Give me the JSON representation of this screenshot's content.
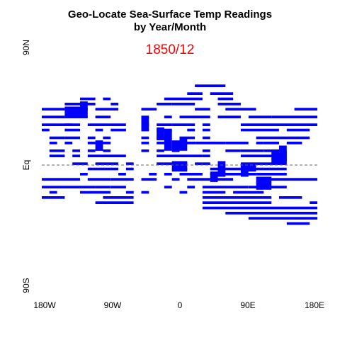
{
  "chart_data": {
    "type": "heatmap",
    "title": "Geo-Locate Sea-Surface Temp Readings",
    "title_line2": "by Year/Month",
    "subtitle": "1850/12",
    "colors": {
      "cells": "#0000ff",
      "subtitle": "#ff0000",
      "equator_line": "#666666"
    },
    "xlim": [
      -180,
      180
    ],
    "ylim": [
      -90,
      90
    ],
    "x_ticks": [
      {
        "value": -180,
        "label": "180W"
      },
      {
        "value": -90,
        "label": "90W"
      },
      {
        "value": 0,
        "label": "0"
      },
      {
        "value": 90,
        "label": "90E"
      },
      {
        "value": 180,
        "label": "180E"
      }
    ],
    "y_ticks": [
      {
        "value": 90,
        "label": "90N"
      },
      {
        "value": 0,
        "label": "Eq"
      },
      {
        "value": -90,
        "label": "90S"
      }
    ],
    "equator_reference": {
      "y": 0,
      "style": "dashed"
    },
    "cell_size_degrees": [
      2,
      2
    ],
    "observations": [
      {
        "lon_range": [
          20,
          60
        ],
        "lat": 61
      },
      {
        "lon_range": [
          10,
          30
        ],
        "lat": 55
      },
      {
        "lon_range": [
          40,
          70
        ],
        "lat": 55
      },
      {
        "lon_range": [
          -130,
          -110
        ],
        "lat": 51
      },
      {
        "lon_range": [
          -100,
          -90
        ],
        "lat": 51
      },
      {
        "lon_range": [
          -20,
          30
        ],
        "lat": 51
      },
      {
        "lon_range": [
          50,
          70
        ],
        "lat": 51
      },
      {
        "lon_range": [
          -150,
          -110
        ],
        "lat": 47
      },
      {
        "lon_range": [
          -90,
          -80
        ],
        "lat": 47
      },
      {
        "lon_range": [
          -30,
          -10
        ],
        "lat": 47
      },
      {
        "lon_range": [
          -10,
          20
        ],
        "lat": 47
      },
      {
        "lon_range": [
          50,
          80
        ],
        "lat": 47
      },
      {
        "lon_range": [
          -180,
          -150
        ],
        "lat": 43
      },
      {
        "lon_range": [
          -150,
          -120
        ],
        "lat": 43
      },
      {
        "lon_range": [
          -110,
          -80
        ],
        "lat": 43
      },
      {
        "lon_range": [
          -50,
          -30
        ],
        "lat": 43
      },
      {
        "lon_range": [
          20,
          40
        ],
        "lat": 43
      },
      {
        "lon_range": [
          60,
          100
        ],
        "lat": 43
      },
      {
        "lon_range": [
          150,
          180
        ],
        "lat": 43
      },
      {
        "lon_range": [
          -180,
          -150
        ],
        "lat": 37
      },
      {
        "lon_range": [
          -150,
          -120
        ],
        "lat": 37
      },
      {
        "lon_range": [
          -110,
          -90
        ],
        "lat": 37
      },
      {
        "lon_range": [
          -50,
          -40
        ],
        "lat": 37
      },
      {
        "lon_range": [
          -20,
          -10
        ],
        "lat": 37
      },
      {
        "lon_range": [
          0,
          40
        ],
        "lat": 37
      },
      {
        "lon_range": [
          50,
          80
        ],
        "lat": 37
      },
      {
        "lon_range": [
          90,
          120
        ],
        "lat": 37
      },
      {
        "lon_range": [
          120,
          180
        ],
        "lat": 37
      },
      {
        "lon_range": [
          -180,
          -140
        ],
        "lat": 31
      },
      {
        "lon_range": [
          -150,
          -130
        ],
        "lat": 31
      },
      {
        "lon_range": [
          -120,
          -70
        ],
        "lat": 31
      },
      {
        "lon_range": [
          -50,
          -40
        ],
        "lat": 31
      },
      {
        "lon_range": [
          -30,
          -10
        ],
        "lat": 31
      },
      {
        "lon_range": [
          -10,
          0
        ],
        "lat": 31
      },
      {
        "lon_range": [
          0,
          20
        ],
        "lat": 31
      },
      {
        "lon_range": [
          30,
          40
        ],
        "lat": 31
      },
      {
        "lon_range": [
          80,
          180
        ],
        "lat": 31
      },
      {
        "lon_range": [
          -180,
          -170
        ],
        "lat": 27
      },
      {
        "lon_range": [
          -150,
          -130
        ],
        "lat": 27
      },
      {
        "lon_range": [
          -110,
          -100
        ],
        "lat": 27
      },
      {
        "lon_range": [
          -90,
          -70
        ],
        "lat": 27
      },
      {
        "lon_range": [
          -50,
          -40
        ],
        "lat": 27
      },
      {
        "lon_range": [
          -30,
          -10
        ],
        "lat": 27
      },
      {
        "lon_range": [
          10,
          20
        ],
        "lat": 27
      },
      {
        "lon_range": [
          30,
          40
        ],
        "lat": 27
      },
      {
        "lon_range": [
          80,
          130
        ],
        "lat": 27
      },
      {
        "lon_range": [
          140,
          170
        ],
        "lat": 27
      },
      {
        "lon_range": [
          -170,
          -150
        ],
        "lat": 21
      },
      {
        "lon_range": [
          -150,
          -130
        ],
        "lat": 21
      },
      {
        "lon_range": [
          -120,
          -110
        ],
        "lat": 21
      },
      {
        "lon_range": [
          -100,
          -90
        ],
        "lat": 21
      },
      {
        "lon_range": [
          -50,
          -40
        ],
        "lat": 21
      },
      {
        "lon_range": [
          -30,
          -20
        ],
        "lat": 21
      },
      {
        "lon_range": [
          0,
          20
        ],
        "lat": 21
      },
      {
        "lon_range": [
          30,
          40
        ],
        "lat": 21
      },
      {
        "lon_range": [
          100,
          130
        ],
        "lat": 21
      },
      {
        "lon_range": [
          130,
          170
        ],
        "lat": 21
      },
      {
        "lon_range": [
          -170,
          -160
        ],
        "lat": 17
      },
      {
        "lon_range": [
          -150,
          -140
        ],
        "lat": 17
      },
      {
        "lon_range": [
          -120,
          -110
        ],
        "lat": 17
      },
      {
        "lon_range": [
          -100,
          -90
        ],
        "lat": 17
      },
      {
        "lon_range": [
          -50,
          -40
        ],
        "lat": 17
      },
      {
        "lon_range": [
          -30,
          -20
        ],
        "lat": 17
      },
      {
        "lon_range": [
          0,
          20
        ],
        "lat": 17
      },
      {
        "lon_range": [
          20,
          60
        ],
        "lat": 17
      },
      {
        "lon_range": [
          60,
          90
        ],
        "lat": 17
      },
      {
        "lon_range": [
          100,
          110
        ],
        "lat": 17
      },
      {
        "lon_range": [
          110,
          130
        ],
        "lat": 17
      },
      {
        "lon_range": [
          140,
          160
        ],
        "lat": 17
      },
      {
        "lon_range": [
          -170,
          -150
        ],
        "lat": 11
      },
      {
        "lon_range": [
          -140,
          -130
        ],
        "lat": 11
      },
      {
        "lon_range": [
          -120,
          -110
        ],
        "lat": 11
      },
      {
        "lon_range": [
          -100,
          -90
        ],
        "lat": 11
      },
      {
        "lon_range": [
          -50,
          -40
        ],
        "lat": 11
      },
      {
        "lon_range": [
          -30,
          -20
        ],
        "lat": 11
      },
      {
        "lon_range": [
          -10,
          0
        ],
        "lat": 11
      },
      {
        "lon_range": [
          30,
          40
        ],
        "lat": 11
      },
      {
        "lon_range": [
          60,
          80
        ],
        "lat": 11
      },
      {
        "lon_range": [
          80,
          110
        ],
        "lat": 11
      },
      {
        "lon_range": [
          110,
          130
        ],
        "lat": 11
      },
      {
        "lon_range": [
          -170,
          -150
        ],
        "lat": 7
      },
      {
        "lon_range": [
          -140,
          -130
        ],
        "lat": 7
      },
      {
        "lon_range": [
          -120,
          -70
        ],
        "lat": 7
      },
      {
        "lon_range": [
          -30,
          0
        ],
        "lat": 7
      },
      {
        "lon_range": [
          0,
          30
        ],
        "lat": 7
      },
      {
        "lon_range": [
          30,
          40
        ],
        "lat": 7
      },
      {
        "lon_range": [
          80,
          130
        ],
        "lat": 7
      },
      {
        "lon_range": [
          -140,
          -120
        ],
        "lat": 1
      },
      {
        "lon_range": [
          -110,
          -80
        ],
        "lat": 1
      },
      {
        "lon_range": [
          -70,
          -60
        ],
        "lat": 1
      },
      {
        "lon_range": [
          -30,
          -20
        ],
        "lat": 1
      },
      {
        "lon_range": [
          -20,
          0
        ],
        "lat": 1
      },
      {
        "lon_range": [
          0,
          10
        ],
        "lat": 1
      },
      {
        "lon_range": [
          20,
          30
        ],
        "lat": 1
      },
      {
        "lon_range": [
          30,
          40
        ],
        "lat": 1
      },
      {
        "lon_range": [
          80,
          140
        ],
        "lat": 1
      },
      {
        "lon_range": [
          -120,
          -80
        ],
        "lat": -3
      },
      {
        "lon_range": [
          -70,
          -60
        ],
        "lat": -3
      },
      {
        "lon_range": [
          -10,
          0
        ],
        "lat": -3
      },
      {
        "lon_range": [
          0,
          10
        ],
        "lat": -3
      },
      {
        "lon_range": [
          40,
          80
        ],
        "lat": -3
      },
      {
        "lon_range": [
          80,
          140
        ],
        "lat": -3
      },
      {
        "lon_range": [
          -130,
          -120
        ],
        "lat": -7
      },
      {
        "lon_range": [
          -80,
          -70
        ],
        "lat": -7
      },
      {
        "lon_range": [
          -40,
          -30
        ],
        "lat": -7
      },
      {
        "lon_range": [
          -20,
          -10
        ],
        "lat": -7
      },
      {
        "lon_range": [
          0,
          30
        ],
        "lat": -7
      },
      {
        "lon_range": [
          40,
          100
        ],
        "lat": -7
      },
      {
        "lon_range": [
          100,
          140
        ],
        "lat": -7
      },
      {
        "lon_range": [
          -180,
          -130
        ],
        "lat": -11
      },
      {
        "lon_range": [
          -120,
          -90
        ],
        "lat": -11
      },
      {
        "lon_range": [
          -90,
          -60
        ],
        "lat": -11
      },
      {
        "lon_range": [
          -50,
          -30
        ],
        "lat": -11
      },
      {
        "lon_range": [
          -10,
          0
        ],
        "lat": -11
      },
      {
        "lon_range": [
          10,
          40
        ],
        "lat": -11
      },
      {
        "lon_range": [
          40,
          70
        ],
        "lat": -11
      },
      {
        "lon_range": [
          110,
          180
        ],
        "lat": -11
      },
      {
        "lon_range": [
          -180,
          -110
        ],
        "lat": -17
      },
      {
        "lon_range": [
          -110,
          -90
        ],
        "lat": -17
      },
      {
        "lon_range": [
          -90,
          -70
        ],
        "lat": -17
      },
      {
        "lon_range": [
          -20,
          -10
        ],
        "lat": -17
      },
      {
        "lon_range": [
          10,
          20
        ],
        "lat": -17
      },
      {
        "lon_range": [
          30,
          90
        ],
        "lat": -17
      },
      {
        "lon_range": [
          90,
          140
        ],
        "lat": -17
      },
      {
        "lon_range": [
          -170,
          -160
        ],
        "lat": -21
      },
      {
        "lon_range": [
          -130,
          -90
        ],
        "lat": -21
      },
      {
        "lon_range": [
          -70,
          -60
        ],
        "lat": -21
      },
      {
        "lon_range": [
          -50,
          -40
        ],
        "lat": -21
      },
      {
        "lon_range": [
          0,
          10
        ],
        "lat": -21
      },
      {
        "lon_range": [
          30,
          60
        ],
        "lat": -21
      },
      {
        "lon_range": [
          70,
          110
        ],
        "lat": -21
      },
      {
        "lon_range": [
          -180,
          -150
        ],
        "lat": -25
      },
      {
        "lon_range": [
          -100,
          -60
        ],
        "lat": -25
      },
      {
        "lon_range": [
          30,
          120
        ],
        "lat": -25
      },
      {
        "lon_range": [
          130,
          160
        ],
        "lat": -25
      },
      {
        "lon_range": [
          -110,
          -60
        ],
        "lat": -29
      },
      {
        "lon_range": [
          30,
          120
        ],
        "lat": -29
      },
      {
        "lon_range": [
          170,
          180
        ],
        "lat": -29
      },
      {
        "lon_range": [
          30,
          180
        ],
        "lat": -33
      },
      {
        "lon_range": [
          60,
          180
        ],
        "lat": -37
      },
      {
        "lon_range": [
          90,
          180
        ],
        "lat": -41
      },
      {
        "lon_range": [
          140,
          170
        ],
        "lat": -45
      }
    ],
    "dense_patches": [
      {
        "lon_range": [
          -150,
          -120
        ],
        "lat_range": [
          37,
          45
        ]
      },
      {
        "lon_range": [
          -130,
          -120
        ],
        "lat_range": [
          45,
          49
        ]
      },
      {
        "lon_range": [
          -110,
          -100
        ],
        "lat_range": [
          11,
          19
        ]
      },
      {
        "lon_range": [
          -50,
          -40
        ],
        "lat_range": [
          27,
          37
        ]
      },
      {
        "lon_range": [
          -30,
          -20
        ],
        "lat_range": [
          19,
          29
        ]
      },
      {
        "lon_range": [
          -20,
          -10
        ],
        "lat_range": [
          11,
          27
        ]
      },
      {
        "lon_range": [
          -10,
          0
        ],
        "lat_range": [
          11,
          19
        ]
      },
      {
        "lon_range": [
          -10,
          10
        ],
        "lat_range": [
          -5,
          3
        ]
      },
      {
        "lon_range": [
          0,
          10
        ],
        "lat_range": [
          11,
          21
        ]
      },
      {
        "lon_range": [
          40,
          50
        ],
        "lat_range": [
          -13,
          -5
        ]
      },
      {
        "lon_range": [
          50,
          60
        ],
        "lat_range": [
          -9,
          3
        ]
      },
      {
        "lon_range": [
          80,
          90
        ],
        "lat_range": [
          -9,
          1
        ]
      },
      {
        "lon_range": [
          80,
          100
        ],
        "lat_range": [
          -5,
          1
        ]
      },
      {
        "lon_range": [
          100,
          120
        ],
        "lat_range": [
          -19,
          -9
        ]
      },
      {
        "lon_range": [
          120,
          140
        ],
        "lat_range": [
          1,
          11
        ]
      },
      {
        "lon_range": [
          130,
          140
        ],
        "lat_range": [
          3,
          15
        ]
      }
    ]
  }
}
